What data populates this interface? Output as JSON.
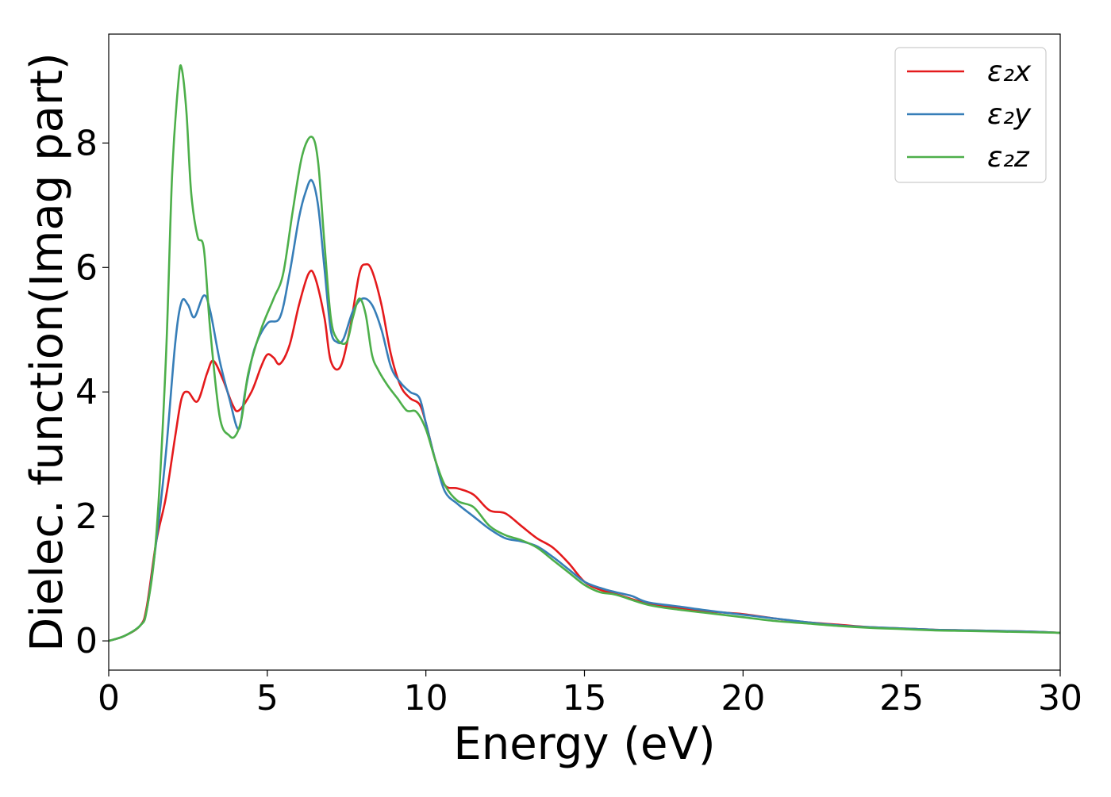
{
  "chart_data": {
    "type": "line",
    "xlabel": "Energy (eV)",
    "ylabel": "Dielec. function(Imag part)",
    "xlim": [
      0,
      30
    ],
    "ylim": [
      -0.47,
      9.75
    ],
    "xticks": [
      0,
      5,
      10,
      15,
      20,
      25,
      30
    ],
    "xtick_labels": [
      "0",
      "5",
      "10",
      "15",
      "20",
      "25",
      "30"
    ],
    "yticks": [
      0,
      2,
      4,
      6,
      8
    ],
    "ytick_labels": [
      "0",
      "2",
      "4",
      "6",
      "8"
    ],
    "grid": false,
    "legend_position": "top-right",
    "series": [
      {
        "name": "ε₂x",
        "color": "#e41a1c",
        "x": [
          0,
          0.5,
          1.0,
          1.2,
          1.5,
          1.8,
          2.1,
          2.3,
          2.5,
          2.8,
          3.1,
          3.3,
          3.6,
          3.9,
          4.1,
          4.5,
          4.8,
          5.0,
          5.2,
          5.4,
          5.7,
          6.0,
          6.3,
          6.5,
          6.8,
          7.0,
          7.3,
          7.6,
          7.9,
          8.1,
          8.3,
          8.6,
          8.9,
          9.2,
          9.5,
          9.8,
          10.0,
          10.3,
          10.6,
          11.0,
          11.5,
          12.0,
          12.5,
          13.0,
          13.5,
          14.0,
          14.5,
          15.0,
          15.5,
          16.0,
          17.0,
          18.0,
          19.0,
          20.0,
          21.0,
          22.0,
          23.0,
          24.0,
          25.0,
          26.0,
          27.0,
          28.0,
          29.0,
          30.0
        ],
        "y": [
          0.0,
          0.08,
          0.25,
          0.55,
          1.6,
          2.3,
          3.3,
          3.9,
          4.0,
          3.85,
          4.3,
          4.5,
          4.2,
          3.8,
          3.7,
          4.0,
          4.4,
          4.6,
          4.55,
          4.45,
          4.75,
          5.4,
          5.9,
          5.85,
          5.2,
          4.5,
          4.4,
          5.0,
          5.9,
          6.05,
          5.95,
          5.4,
          4.6,
          4.1,
          3.9,
          3.8,
          3.5,
          2.9,
          2.5,
          2.45,
          2.35,
          2.1,
          2.05,
          1.85,
          1.65,
          1.5,
          1.25,
          0.95,
          0.82,
          0.75,
          0.6,
          0.53,
          0.47,
          0.43,
          0.36,
          0.3,
          0.26,
          0.22,
          0.2,
          0.18,
          0.17,
          0.16,
          0.15,
          0.13
        ]
      },
      {
        "name": "ε₂y",
        "color": "#377eb8",
        "x": [
          0,
          0.5,
          1.0,
          1.2,
          1.5,
          1.8,
          2.1,
          2.3,
          2.5,
          2.7,
          3.0,
          3.2,
          3.5,
          3.8,
          4.1,
          4.3,
          4.6,
          5.0,
          5.4,
          5.7,
          6.0,
          6.2,
          6.4,
          6.6,
          6.8,
          7.0,
          7.2,
          7.4,
          7.7,
          8.0,
          8.3,
          8.6,
          8.9,
          9.2,
          9.5,
          9.8,
          10.0,
          10.3,
          10.6,
          11.0,
          11.5,
          12.0,
          12.5,
          13.0,
          13.5,
          14.0,
          14.5,
          15.0,
          15.5,
          16.0,
          16.5,
          17.0,
          18.0,
          19.0,
          20.0,
          21.0,
          22.0,
          23.0,
          24.0,
          25.0,
          26.0,
          27.0,
          28.0,
          29.0,
          30.0
        ],
        "y": [
          0.0,
          0.08,
          0.25,
          0.5,
          1.6,
          3.0,
          4.8,
          5.45,
          5.4,
          5.2,
          5.55,
          5.3,
          4.5,
          3.9,
          3.4,
          4.0,
          4.7,
          5.1,
          5.2,
          5.9,
          6.8,
          7.2,
          7.4,
          7.0,
          6.0,
          5.0,
          4.8,
          4.85,
          5.3,
          5.5,
          5.4,
          5.0,
          4.4,
          4.15,
          4.0,
          3.9,
          3.5,
          2.9,
          2.4,
          2.2,
          2.0,
          1.8,
          1.65,
          1.6,
          1.52,
          1.35,
          1.15,
          0.95,
          0.85,
          0.78,
          0.72,
          0.62,
          0.55,
          0.48,
          0.42,
          0.36,
          0.3,
          0.25,
          0.22,
          0.2,
          0.18,
          0.17,
          0.16,
          0.15,
          0.13
        ]
      },
      {
        "name": "ε₂z",
        "color": "#4daf4a",
        "x": [
          0,
          0.5,
          1.0,
          1.2,
          1.5,
          1.8,
          2.0,
          2.2,
          2.3,
          2.45,
          2.6,
          2.8,
          3.0,
          3.2,
          3.5,
          3.8,
          4.0,
          4.2,
          4.4,
          4.8,
          5.2,
          5.5,
          5.8,
          6.1,
          6.4,
          6.6,
          6.8,
          7.0,
          7.2,
          7.5,
          7.7,
          7.9,
          8.1,
          8.3,
          8.5,
          8.8,
          9.1,
          9.4,
          9.7,
          10.0,
          10.3,
          10.6,
          11.0,
          11.5,
          12.0,
          12.5,
          13.0,
          13.5,
          14.0,
          14.5,
          15.0,
          15.5,
          16.0,
          17.0,
          18.0,
          19.0,
          20.0,
          21.0,
          22.0,
          23.0,
          24.0,
          25.0,
          26.0,
          27.0,
          28.0,
          29.0,
          30.0
        ],
        "y": [
          0.0,
          0.08,
          0.25,
          0.5,
          1.7,
          4.5,
          7.5,
          9.0,
          9.2,
          8.5,
          7.2,
          6.5,
          6.3,
          5.0,
          3.6,
          3.3,
          3.3,
          3.6,
          4.3,
          5.0,
          5.5,
          5.9,
          6.9,
          7.8,
          8.1,
          7.7,
          6.4,
          5.2,
          4.85,
          4.8,
          5.2,
          5.5,
          5.25,
          4.6,
          4.35,
          4.1,
          3.9,
          3.7,
          3.68,
          3.4,
          2.9,
          2.5,
          2.25,
          2.15,
          1.85,
          1.7,
          1.62,
          1.5,
          1.3,
          1.1,
          0.9,
          0.78,
          0.74,
          0.58,
          0.5,
          0.44,
          0.38,
          0.32,
          0.28,
          0.24,
          0.21,
          0.19,
          0.17,
          0.16,
          0.15,
          0.14,
          0.13
        ]
      }
    ]
  }
}
